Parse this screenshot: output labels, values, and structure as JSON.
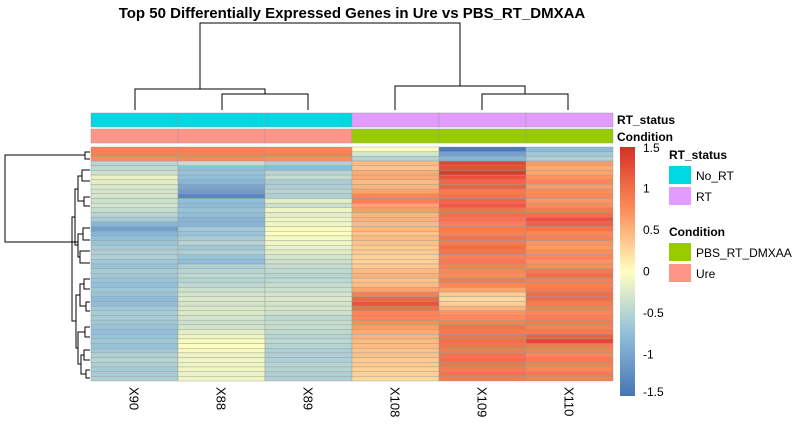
{
  "chart_data": {
    "type": "heatmap",
    "title": "Top 50 Differentially Expressed Genes in Ure vs PBS_RT_DMXAA",
    "columns": [
      "X90",
      "X88",
      "X89",
      "X108",
      "X109",
      "X110"
    ],
    "annotations": [
      {
        "name": "RT_status",
        "values": [
          "No_RT",
          "No_RT",
          "No_RT",
          "RT",
          "RT",
          "RT"
        ]
      },
      {
        "name": "Condition",
        "values": [
          "Ure",
          "Ure",
          "Ure",
          "PBS_RT_DMXAA",
          "PBS_RT_DMXAA",
          "PBS_RT_DMXAA"
        ]
      }
    ],
    "legend": [
      {
        "title": "RT_status",
        "entries": [
          {
            "label": "No_RT",
            "color": "#00D8E3"
          },
          {
            "label": "RT",
            "color": "#E29CFF"
          }
        ]
      },
      {
        "title": "Condition",
        "entries": [
          {
            "label": "PBS_RT_DMXAA",
            "color": "#99CC00"
          },
          {
            "label": "Ure",
            "color": "#FF9587"
          }
        ]
      }
    ],
    "colorbar": {
      "range": [
        -1.5,
        1.5
      ],
      "ticks": [
        "1.5",
        "1",
        "0.5",
        "0",
        "-0.5",
        "-1",
        "-1.5"
      ],
      "tick_values": [
        1.5,
        1,
        0.5,
        0,
        -0.5,
        -1,
        -1.5
      ],
      "colors": [
        "#4575B4",
        "#FFFFBF",
        "#D73027"
      ]
    },
    "rows": [
      [
        0.85,
        0.85,
        0.8,
        0.0,
        -1.45,
        -0.8
      ],
      [
        0.85,
        0.85,
        0.85,
        -0.3,
        -1.05,
        -0.65
      ],
      [
        0.75,
        0.8,
        0.75,
        -0.5,
        -0.85,
        -0.55
      ],
      [
        -0.5,
        -0.4,
        -0.55,
        0.45,
        1.3,
        0.65
      ],
      [
        -0.45,
        -0.75,
        -0.8,
        0.4,
        1.25,
        0.55
      ],
      [
        -0.35,
        -0.7,
        -0.5,
        0.55,
        1.4,
        0.6
      ],
      [
        -0.15,
        -0.75,
        -0.4,
        0.55,
        1.2,
        0.7
      ],
      [
        -0.2,
        -0.85,
        -0.6,
        0.45,
        1.05,
        0.8
      ],
      [
        -0.25,
        -1.0,
        -0.55,
        0.5,
        1.1,
        0.65
      ],
      [
        -0.3,
        -1.1,
        -0.5,
        0.6,
        0.9,
        0.75
      ],
      [
        -0.3,
        -1.3,
        -0.55,
        0.8,
        0.95,
        0.8
      ],
      [
        -0.35,
        -0.75,
        -0.2,
        0.85,
        1.05,
        0.7
      ],
      [
        -0.3,
        -0.8,
        -0.35,
        0.6,
        1.15,
        0.75
      ],
      [
        -0.4,
        -0.7,
        -0.1,
        0.65,
        0.95,
        0.9
      ],
      [
        -0.5,
        -0.75,
        -0.2,
        0.5,
        1.0,
        1.0
      ],
      [
        -0.6,
        -0.85,
        -0.1,
        0.5,
        0.95,
        1.2
      ],
      [
        -0.85,
        -0.85,
        -0.1,
        0.45,
        0.85,
        1.1
      ],
      [
        -1.05,
        -0.65,
        -0.05,
        0.45,
        0.9,
        0.95
      ],
      [
        -0.85,
        -0.7,
        0.0,
        0.4,
        0.85,
        0.8
      ],
      [
        -0.75,
        -0.6,
        -0.05,
        0.45,
        0.95,
        0.85
      ],
      [
        -0.7,
        -0.5,
        -0.1,
        0.4,
        0.9,
        0.7
      ],
      [
        -0.6,
        -0.65,
        -0.15,
        0.35,
        1.0,
        0.65
      ],
      [
        -0.55,
        -0.55,
        -0.2,
        0.35,
        0.95,
        0.75
      ],
      [
        -0.55,
        -0.7,
        -0.3,
        0.3,
        0.85,
        0.8
      ],
      [
        -0.65,
        -0.75,
        -0.35,
        0.3,
        0.9,
        0.7
      ],
      [
        -0.7,
        -0.55,
        -0.4,
        0.35,
        0.85,
        0.75
      ],
      [
        -0.6,
        -0.5,
        -0.45,
        0.45,
        0.8,
        0.9
      ],
      [
        -0.65,
        -0.45,
        -0.5,
        0.5,
        0.75,
        1.0
      ],
      [
        -0.7,
        -0.5,
        -0.45,
        0.4,
        0.9,
        0.85
      ],
      [
        -0.75,
        -0.45,
        -0.4,
        0.45,
        0.8,
        0.85
      ],
      [
        -0.65,
        -0.35,
        -0.35,
        0.6,
        0.6,
        0.9
      ],
      [
        -0.7,
        -0.3,
        -0.3,
        0.85,
        0.35,
        1.0
      ],
      [
        -0.8,
        -0.25,
        -0.25,
        1.05,
        0.25,
        1.0
      ],
      [
        -0.75,
        -0.3,
        -0.3,
        1.2,
        0.3,
        0.9
      ],
      [
        -0.65,
        -0.25,
        -0.3,
        1.0,
        0.5,
        0.85
      ],
      [
        -0.6,
        -0.25,
        -0.35,
        0.8,
        0.7,
        0.8
      ],
      [
        -0.6,
        -0.3,
        -0.45,
        0.8,
        0.75,
        0.85
      ],
      [
        -0.65,
        -0.35,
        -0.4,
        0.75,
        0.85,
        0.9
      ],
      [
        -0.7,
        -0.3,
        -0.4,
        0.65,
        0.95,
        0.85
      ],
      [
        -0.75,
        -0.2,
        -0.45,
        0.55,
        0.9,
        0.9
      ],
      [
        -0.7,
        -0.1,
        -0.5,
        0.5,
        0.95,
        1.1
      ],
      [
        -0.65,
        -0.05,
        -0.45,
        0.45,
        1.0,
        1.3
      ],
      [
        -0.7,
        0.0,
        -0.5,
        0.45,
        0.95,
        0.9
      ],
      [
        -0.65,
        -0.05,
        -0.55,
        0.4,
        0.9,
        0.85
      ],
      [
        -0.55,
        -0.1,
        -0.55,
        0.4,
        0.95,
        0.8
      ],
      [
        -0.5,
        -0.1,
        -0.55,
        0.35,
        1.0,
        0.9
      ],
      [
        -0.55,
        -0.1,
        -0.5,
        0.35,
        0.95,
        0.85
      ],
      [
        -0.6,
        -0.1,
        -0.5,
        0.3,
        0.9,
        0.8
      ],
      [
        -0.6,
        -0.15,
        -0.55,
        0.3,
        0.95,
        0.9
      ],
      [
        -0.55,
        -0.1,
        -0.55,
        0.25,
        0.9,
        0.85
      ]
    ]
  }
}
